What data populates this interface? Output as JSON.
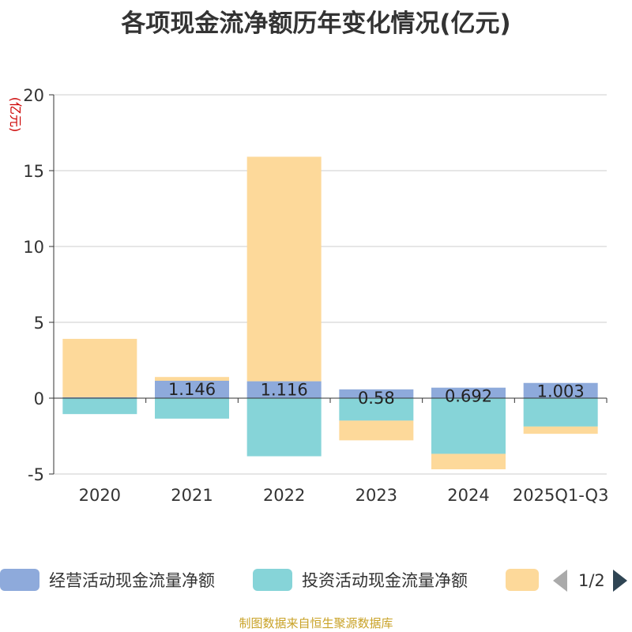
{
  "chart_data": {
    "type": "bar",
    "stacked": true,
    "title": "各项现金流净额历年变化情况(亿元)",
    "ylabel": "(亿元)",
    "xlabel": "",
    "categories": [
      "2020",
      "2021",
      "2022",
      "2023",
      "2024",
      "2025Q1-Q3"
    ],
    "ylim": [
      -5,
      20
    ],
    "yticks": [
      -5,
      0,
      5,
      10,
      15,
      20
    ],
    "grid": true,
    "series": [
      {
        "name": "经营活动现金流量净额",
        "color": "#8eaadb",
        "values": [
          0.06,
          1.146,
          1.116,
          0.58,
          0.692,
          1.003
        ],
        "labels": [
          "",
          "1.146",
          "1.116",
          "0.58",
          "0.692",
          "1.003"
        ]
      },
      {
        "name": "投资活动现金流量净额",
        "color": "#86d4d8",
        "values": [
          -1.05,
          -1.35,
          -3.83,
          -1.48,
          -3.67,
          -1.87
        ]
      },
      {
        "name": "",
        "color": "#fdd99a",
        "values": [
          3.85,
          0.25,
          14.8,
          -1.3,
          -1.02,
          -0.48
        ]
      }
    ],
    "legend": {
      "position": "bottom",
      "page_text": "1/2"
    }
  },
  "footer": {
    "source": "制图数据来自恒生聚源数据库"
  }
}
